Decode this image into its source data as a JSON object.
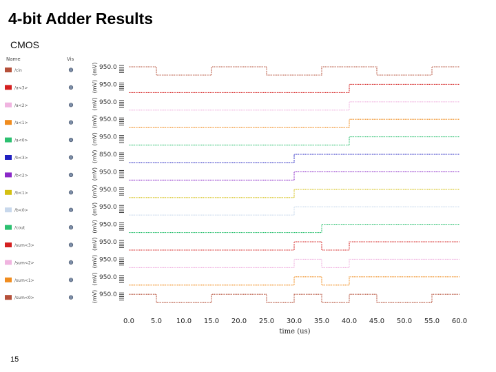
{
  "slide": {
    "title": "4-bit Adder Results",
    "subtitle": "CMOS",
    "page_number": "15"
  },
  "panel": {
    "name_header": "Name",
    "vis_header": "Vis"
  },
  "signals": [
    {
      "name": "/cin",
      "color": "#b5503a",
      "ylabel": "(mV)",
      "value_label": "950.0",
      "transitions": [
        0,
        5,
        15,
        25,
        35,
        45,
        55
      ],
      "initial": 1
    },
    {
      "name": "/a<3>",
      "color": "#d42020",
      "ylabel": "(mV)",
      "value_label": "950.0",
      "transitions": [
        40
      ],
      "initial": 0
    },
    {
      "name": "/a<2>",
      "color": "#f0b4e0",
      "ylabel": "(mV)",
      "value_label": "950.0",
      "transitions": [
        40
      ],
      "initial": 0
    },
    {
      "name": "/a<1>",
      "color": "#f08c1e",
      "ylabel": "(mV)",
      "value_label": "950.0",
      "transitions": [
        40
      ],
      "initial": 0
    },
    {
      "name": "/a<0>",
      "color": "#2cc070",
      "ylabel": "(mV)",
      "value_label": "950.0",
      "transitions": [
        40
      ],
      "initial": 0
    },
    {
      "name": "/b<3>",
      "color": "#2020c0",
      "ylabel": "(mV)",
      "value_label": "850.0",
      "transitions": [
        30
      ],
      "initial": 0
    },
    {
      "name": "/b<2>",
      "color": "#8a28c8",
      "ylabel": "(mV)",
      "value_label": "950.0",
      "transitions": [
        30
      ],
      "initial": 0
    },
    {
      "name": "/b<1>",
      "color": "#d4c012",
      "ylabel": "(mV)",
      "value_label": "950.0",
      "transitions": [
        30
      ],
      "initial": 0
    },
    {
      "name": "/b<0>",
      "color": "#c8d8ec",
      "ylabel": "(mV)",
      "value_label": "950.0",
      "transitions": [
        30
      ],
      "initial": 0
    },
    {
      "name": "/cout",
      "color": "#2cc070",
      "ylabel": "(mV)",
      "value_label": "950.0",
      "transitions": [
        35
      ],
      "initial": 0
    },
    {
      "name": "/sum<3>",
      "color": "#d42020",
      "ylabel": "(mV)",
      "value_label": "950.0",
      "transitions": [
        30,
        35,
        40
      ],
      "initial": 0
    },
    {
      "name": "/sum<2>",
      "color": "#f0b4e0",
      "ylabel": "(mV)",
      "value_label": "950.0",
      "transitions": [
        30,
        35,
        40
      ],
      "initial": 0
    },
    {
      "name": "/sum<1>",
      "color": "#f08c1e",
      "ylabel": "(mV)",
      "value_label": "950.0",
      "transitions": [
        30,
        35,
        40
      ],
      "initial": 0
    },
    {
      "name": "/sum<0>",
      "color": "#b5503a",
      "ylabel": "(mV)",
      "value_label": "950.0",
      "transitions": [
        0,
        5,
        15,
        25,
        30,
        35,
        40,
        45,
        55
      ],
      "initial": 1
    }
  ],
  "x_axis": {
    "min": 0,
    "max": 60,
    "ticks": [
      "0.0",
      "5.0",
      "10.0",
      "15.0",
      "20.0",
      "25.0",
      "30.0",
      "35.0",
      "40.0",
      "45.0",
      "50.0",
      "55.0",
      "60.0"
    ],
    "label": "time (us)"
  }
}
